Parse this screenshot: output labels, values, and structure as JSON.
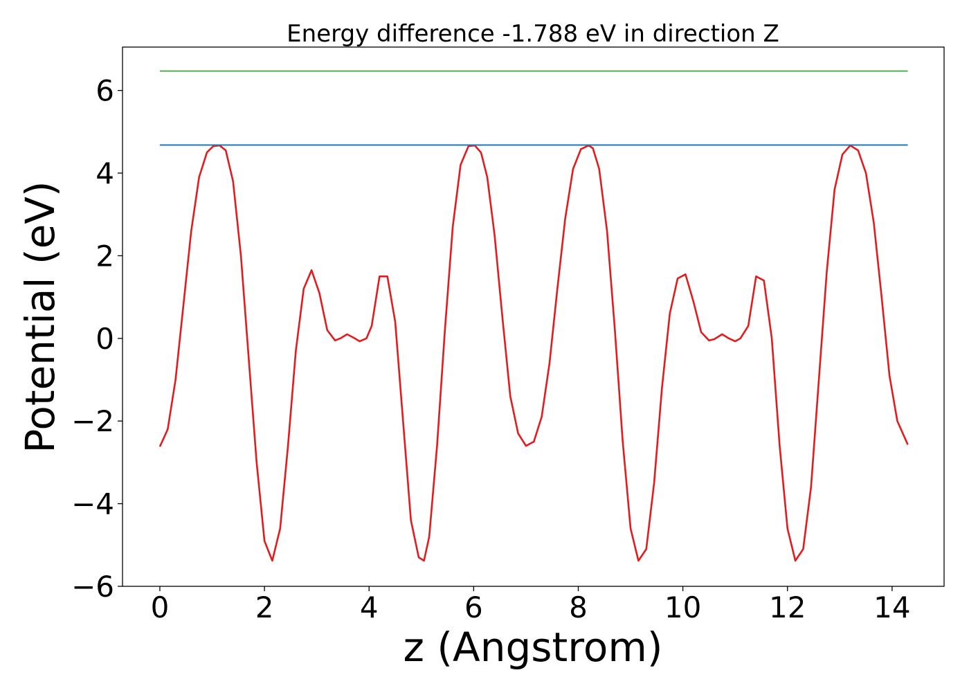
{
  "chart_data": {
    "type": "line",
    "title": "Energy difference -1.788 eV in direction Z",
    "xlabel": "z (Angstrom)",
    "ylabel": "Potential (eV)",
    "xlim": [
      -0.714,
      14.994
    ],
    "ylim": [
      -6.0,
      7.05
    ],
    "x_ticks": [
      0,
      2,
      4,
      6,
      8,
      10,
      12,
      14
    ],
    "y_ticks": [
      -6,
      -4,
      -2,
      0,
      2,
      4,
      6
    ],
    "x_tick_labels": [
      "0",
      "2",
      "4",
      "6",
      "8",
      "10",
      "12",
      "14"
    ],
    "y_tick_labels": [
      "−6",
      "−4",
      "−2",
      "0",
      "2",
      "4",
      "6"
    ],
    "grid": false,
    "legend": "none",
    "series": [
      {
        "kind": "curve",
        "color": "#e41a1c",
        "x": [
          0,
          0.15,
          0.3,
          0.45,
          0.6,
          0.75,
          0.9,
          1.02,
          1.14,
          1.26,
          1.4,
          1.55,
          1.7,
          1.85,
          2.0,
          2.15,
          2.3,
          2.45,
          2.6,
          2.75,
          2.9,
          3.05,
          3.2,
          3.35,
          3.45,
          3.58,
          3.7,
          3.82,
          3.95,
          4.05,
          4.2,
          4.35,
          4.5,
          4.65,
          4.8,
          4.95,
          5.05,
          5.15,
          5.3,
          5.45,
          5.6,
          5.75,
          5.9,
          6.02,
          6.14,
          6.26,
          6.4,
          6.55,
          6.7,
          6.85,
          7.0,
          7.15,
          7.3,
          7.45,
          7.6,
          7.75,
          7.9,
          8.05,
          8.2,
          8.28,
          8.4,
          8.55,
          8.7,
          8.85,
          9.0,
          9.15,
          9.3,
          9.45,
          9.6,
          9.75,
          9.9,
          10.05,
          10.2,
          10.35,
          10.5,
          10.6,
          10.75,
          10.88,
          11.0,
          11.1,
          11.25,
          11.4,
          11.55,
          11.7,
          11.85,
          12.0,
          12.15,
          12.3,
          12.45,
          12.6,
          12.75,
          12.9,
          13.05,
          13.2,
          13.35,
          13.5,
          13.65,
          13.8,
          13.95,
          14.1,
          14.3
        ],
        "y": [
          -2.62,
          -2.2,
          -1.0,
          0.8,
          2.6,
          3.9,
          4.5,
          4.65,
          4.67,
          4.55,
          3.8,
          2.0,
          -0.5,
          -3.0,
          -4.9,
          -5.38,
          -4.6,
          -2.6,
          -0.3,
          1.2,
          1.65,
          1.1,
          0.2,
          -0.05,
          0.0,
          0.1,
          0.02,
          -0.07,
          0.0,
          0.3,
          1.5,
          1.5,
          0.4,
          -2.0,
          -4.4,
          -5.3,
          -5.38,
          -4.8,
          -2.6,
          0.2,
          2.7,
          4.2,
          4.65,
          4.67,
          4.5,
          3.9,
          2.5,
          0.5,
          -1.4,
          -2.3,
          -2.6,
          -2.5,
          -1.9,
          -0.6,
          1.2,
          2.9,
          4.1,
          4.58,
          4.67,
          4.6,
          4.1,
          2.6,
          0.2,
          -2.5,
          -4.6,
          -5.38,
          -5.1,
          -3.5,
          -1.2,
          0.6,
          1.45,
          1.55,
          0.9,
          0.15,
          -0.05,
          -0.02,
          0.1,
          0.0,
          -0.07,
          0.0,
          0.3,
          1.5,
          1.4,
          0.0,
          -2.6,
          -4.6,
          -5.38,
          -5.1,
          -3.6,
          -1.0,
          1.6,
          3.6,
          4.45,
          4.67,
          4.55,
          4.0,
          2.8,
          1.0,
          -0.9,
          -2.0,
          -2.57
        ]
      },
      {
        "kind": "hline",
        "color": "#1f77b4",
        "x": [
          0,
          14.3
        ],
        "y": [
          4.68,
          4.68
        ]
      },
      {
        "kind": "hline",
        "color": "#4daf4a",
        "x": [
          0,
          14.3
        ],
        "y": [
          6.47,
          6.47
        ]
      }
    ]
  }
}
